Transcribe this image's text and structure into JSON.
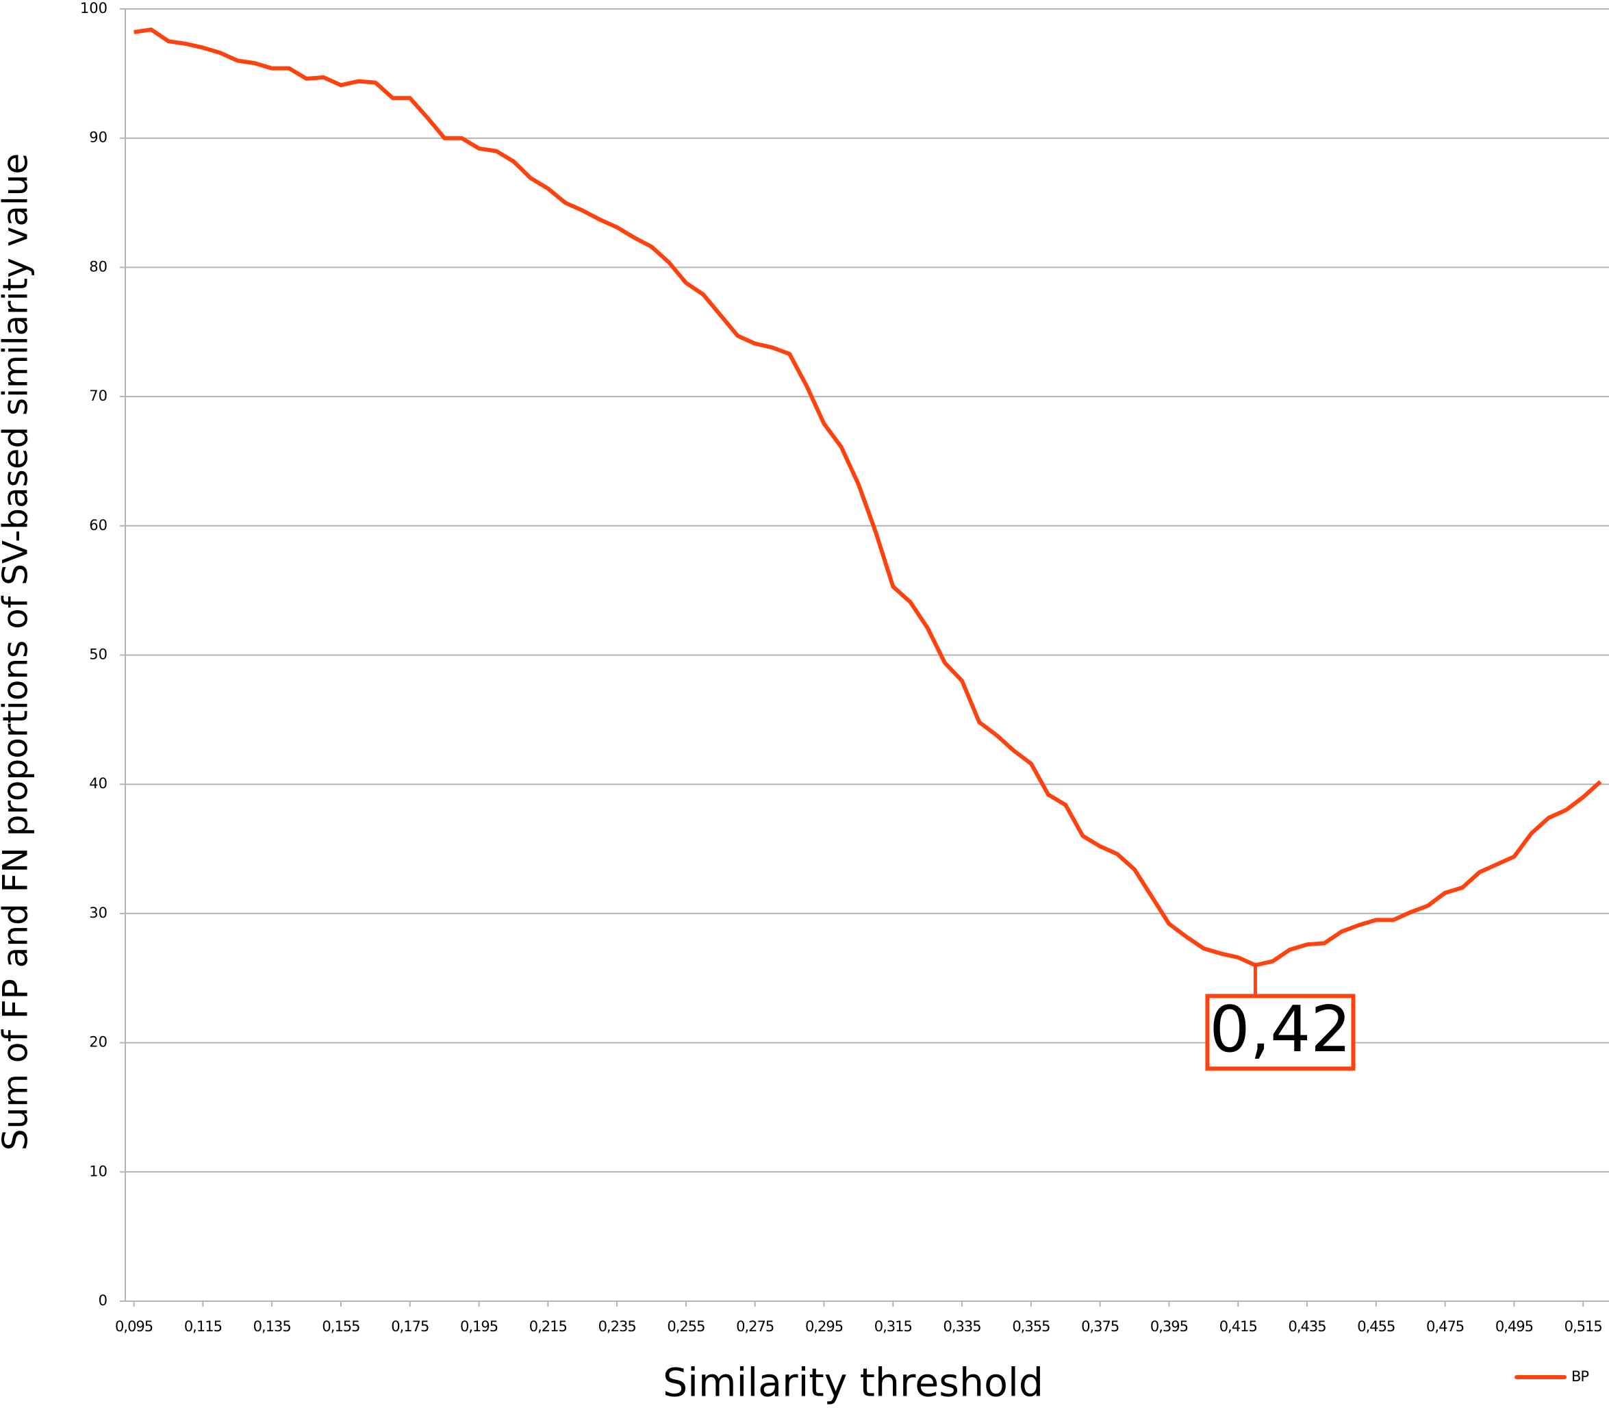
{
  "chart_data": {
    "type": "line",
    "xlabel": "Similarity threshold",
    "ylabel": "Sum of FP and FN proportions of SV-based similarity value",
    "x": [
      0.095,
      0.1,
      0.105,
      0.11,
      0.115,
      0.12,
      0.125,
      0.13,
      0.135,
      0.14,
      0.145,
      0.15,
      0.155,
      0.16,
      0.165,
      0.17,
      0.175,
      0.18,
      0.185,
      0.19,
      0.195,
      0.2,
      0.205,
      0.21,
      0.215,
      0.22,
      0.225,
      0.23,
      0.235,
      0.24,
      0.245,
      0.25,
      0.255,
      0.26,
      0.265,
      0.27,
      0.275,
      0.28,
      0.285,
      0.29,
      0.295,
      0.3,
      0.305,
      0.31,
      0.315,
      0.32,
      0.325,
      0.33,
      0.335,
      0.34,
      0.345,
      0.35,
      0.355,
      0.36,
      0.365,
      0.37,
      0.375,
      0.38,
      0.385,
      0.39,
      0.395,
      0.4,
      0.405,
      0.41,
      0.415,
      0.42,
      0.425,
      0.43,
      0.435,
      0.44,
      0.445,
      0.45,
      0.455,
      0.46,
      0.465,
      0.47,
      0.475,
      0.48,
      0.485,
      0.49,
      0.495,
      0.5,
      0.505,
      0.51,
      0.515,
      0.52
    ],
    "series": [
      {
        "name": "BP",
        "color": "#ff420e",
        "values": [
          98.2,
          98.4,
          97.5,
          97.3,
          97.0,
          96.6,
          96.0,
          95.8,
          95.4,
          95.4,
          94.6,
          94.7,
          94.1,
          94.4,
          94.3,
          93.1,
          93.1,
          91.6,
          90.0,
          90.0,
          89.2,
          89.0,
          88.2,
          86.9,
          86.1,
          85.0,
          84.4,
          83.7,
          83.1,
          82.3,
          81.6,
          80.4,
          78.8,
          77.9,
          76.3,
          74.7,
          74.1,
          73.8,
          73.3,
          70.8,
          67.9,
          66.1,
          63.2,
          59.5,
          55.3,
          54.1,
          52.1,
          49.4,
          48.0,
          44.8,
          43.8,
          42.6,
          41.6,
          39.2,
          38.4,
          36.0,
          35.2,
          34.6,
          33.4,
          31.3,
          29.2,
          28.2,
          27.3,
          26.9,
          26.6,
          26.0,
          26.3,
          27.2,
          27.6,
          27.7,
          28.6,
          29.1,
          29.5,
          29.5,
          30.1,
          30.6,
          31.6,
          32.0,
          33.2,
          33.8,
          34.4,
          36.2,
          37.4,
          38.0,
          39.0,
          40.2
        ]
      }
    ],
    "annotations": [
      {
        "text": "0,42",
        "x": 0.42
      }
    ],
    "xlim": [
      0.0925,
      0.5225
    ],
    "xticks": [
      {
        "value": 0.095,
        "label": "0,095"
      },
      {
        "value": 0.115,
        "label": "0,115"
      },
      {
        "value": 0.135,
        "label": "0,135"
      },
      {
        "value": 0.155,
        "label": "0,155"
      },
      {
        "value": 0.175,
        "label": "0,175"
      },
      {
        "value": 0.195,
        "label": "0,195"
      },
      {
        "value": 0.215,
        "label": "0,215"
      },
      {
        "value": 0.235,
        "label": "0,235"
      },
      {
        "value": 0.255,
        "label": "0,255"
      },
      {
        "value": 0.275,
        "label": "0,275"
      },
      {
        "value": 0.295,
        "label": "0,295"
      },
      {
        "value": 0.315,
        "label": "0,315"
      },
      {
        "value": 0.335,
        "label": "0,335"
      },
      {
        "value": 0.355,
        "label": "0,355"
      },
      {
        "value": 0.375,
        "label": "0,375"
      },
      {
        "value": 0.395,
        "label": "0,395"
      },
      {
        "value": 0.415,
        "label": "0,415"
      },
      {
        "value": 0.435,
        "label": "0,435"
      },
      {
        "value": 0.455,
        "label": "0,455"
      },
      {
        "value": 0.475,
        "label": "0,475"
      },
      {
        "value": 0.495,
        "label": "0,495"
      },
      {
        "value": 0.515,
        "label": "0,515"
      }
    ],
    "ylim": [
      0,
      100
    ],
    "yticks": [
      0,
      10,
      20,
      30,
      40,
      50,
      60,
      70,
      80,
      90,
      100
    ],
    "grid": true,
    "legend": "bottom-right"
  }
}
